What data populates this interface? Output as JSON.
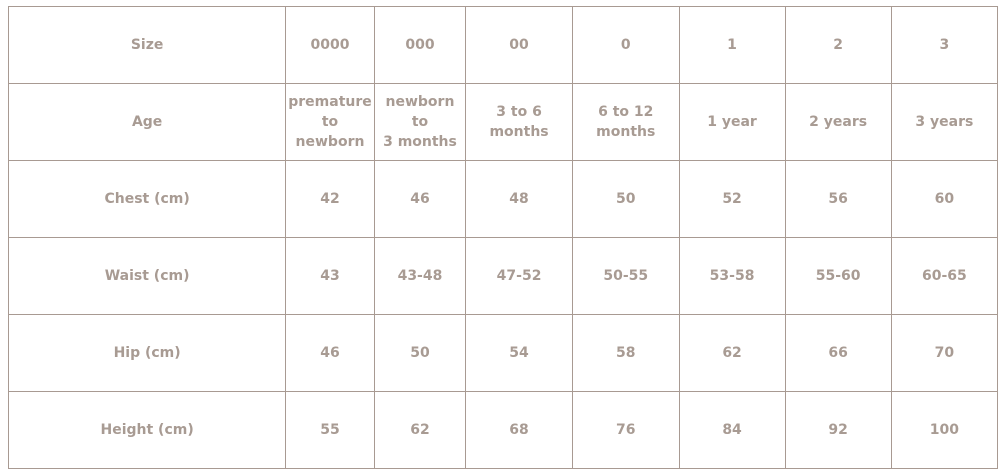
{
  "rows": [
    {
      "label": "Size",
      "values": [
        "0000",
        "000",
        "00",
        "0",
        "1",
        "2",
        "3"
      ]
    },
    {
      "label": "Age",
      "values": [
        "premature\nto\nnewborn",
        "newborn\nto\n3 months",
        "3 to 6\nmonths",
        "6 to 12\nmonths",
        "1 year",
        "2 years",
        "3 years"
      ]
    },
    {
      "label": "Chest (cm)",
      "values": [
        "42",
        "46",
        "48",
        "50",
        "52",
        "56",
        "60"
      ]
    },
    {
      "label": "Waist (cm)",
      "values": [
        "43",
        "43-48",
        "47-52",
        "50-55",
        "53-58",
        "55-60",
        "60-65"
      ]
    },
    {
      "label": "Hip (cm)",
      "values": [
        "46",
        "50",
        "54",
        "58",
        "62",
        "66",
        "70"
      ]
    },
    {
      "label": "Height (cm)",
      "values": [
        "55",
        "62",
        "68",
        "76",
        "84",
        "92",
        "100"
      ]
    }
  ],
  "colors": {
    "text": "#a89b93",
    "border": "#a89a92"
  }
}
